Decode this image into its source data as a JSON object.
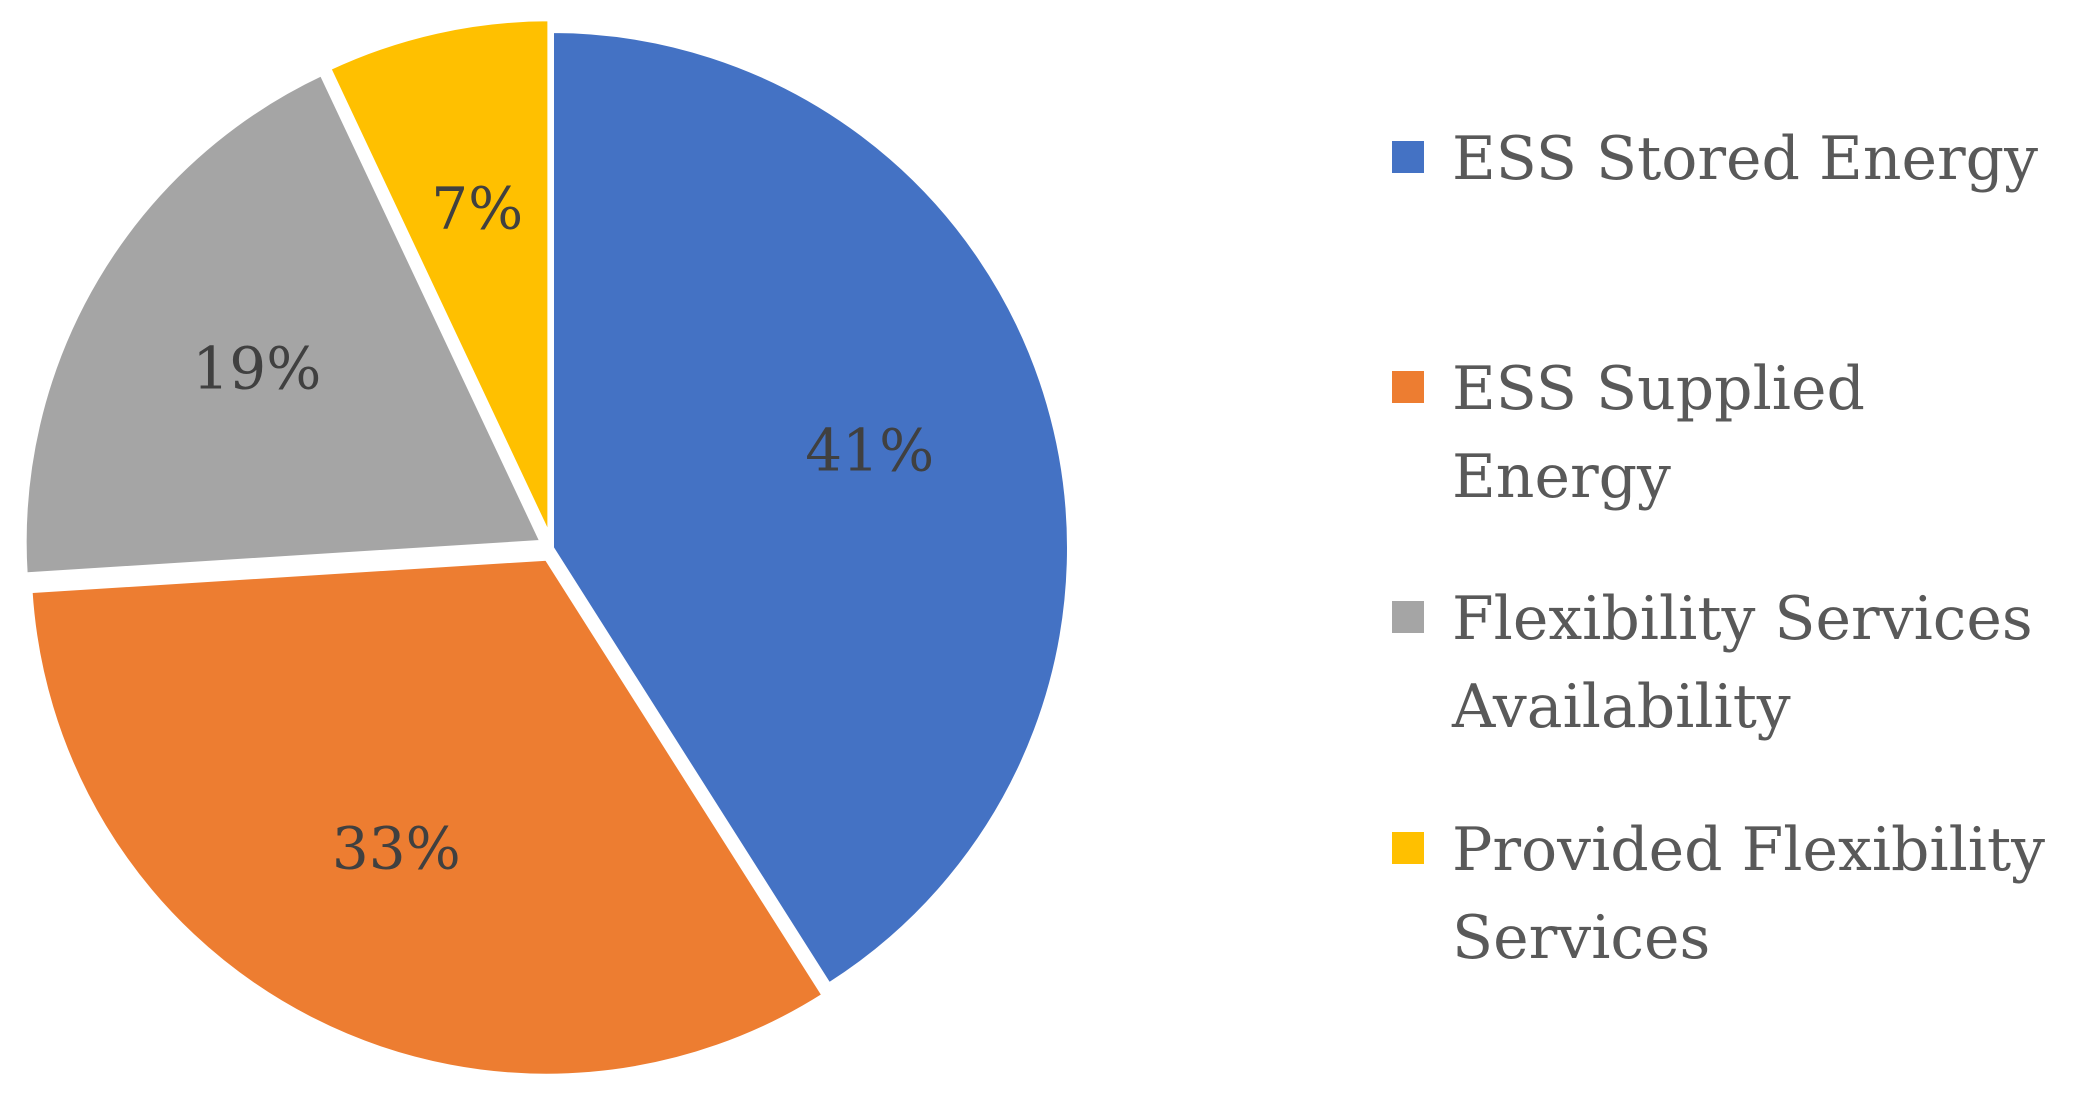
{
  "chart_data": {
    "type": "pie",
    "categories": [
      "ESS Stored Energy",
      "ESS Supplied Energy",
      "Flexibility Services Availability",
      "Provided Flexibility Services"
    ],
    "values": [
      41,
      33,
      19,
      7
    ],
    "value_labels": [
      "41%",
      "33%",
      "19%",
      "7%"
    ],
    "colors": [
      "#4472C4",
      "#ED7D31",
      "#A5A5A5",
      "#FFC000"
    ],
    "start_angle_deg": 0,
    "direction": "clockwise",
    "legend_position": "right"
  },
  "legend": {
    "items": [
      {
        "label": "ESS Stored Energy",
        "color": "#4472C4"
      },
      {
        "label": "ESS Supplied Energy",
        "color": "#ED7D31"
      },
      {
        "label": "Flexibility Services Availability",
        "color": "#A5A5A5"
      },
      {
        "label": "Provided Flexibility Services",
        "color": "#FFC000"
      }
    ]
  }
}
